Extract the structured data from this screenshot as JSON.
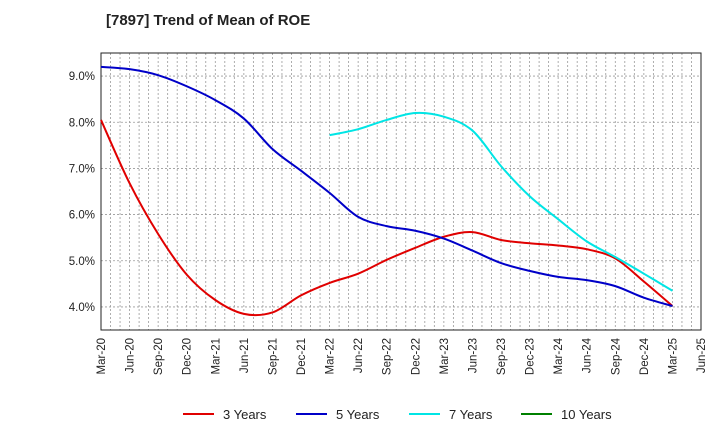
{
  "chart_data": {
    "type": "line",
    "title": "[7897]  Trend of Mean of ROE",
    "xlabel": "",
    "ylabel": "",
    "x_tick_labels": [
      "Mar-20",
      "Jun-20",
      "Sep-20",
      "Dec-20",
      "Mar-21",
      "Jun-21",
      "Sep-21",
      "Dec-21",
      "Mar-22",
      "Jun-22",
      "Sep-22",
      "Dec-22",
      "Mar-23",
      "Jun-23",
      "Sep-23",
      "Dec-23",
      "Mar-24",
      "Jun-24",
      "Sep-24",
      "Dec-24",
      "Mar-25",
      "Jun-25"
    ],
    "y_tick_labels": [
      "4.0%",
      "5.0%",
      "6.0%",
      "7.0%",
      "8.0%",
      "9.0%"
    ],
    "y_ticks": [
      4,
      5,
      6,
      7,
      8,
      9
    ],
    "ylim": [
      3.5,
      9.5
    ],
    "grid": true,
    "legend_position": "bottom",
    "series": [
      {
        "name": "3 Years",
        "color": "#e00000",
        "start_index": 0,
        "values": [
          8.05,
          6.68,
          5.58,
          4.7,
          4.15,
          3.85,
          3.88,
          4.25,
          4.52,
          4.72,
          5.02,
          5.28,
          5.52,
          5.62,
          5.45,
          5.38,
          5.33,
          5.25,
          5.05,
          4.55,
          4.02
        ]
      },
      {
        "name": "5 Years",
        "color": "#0000c8",
        "start_index": 0,
        "values": [
          9.2,
          9.15,
          9.02,
          8.78,
          8.48,
          8.08,
          7.42,
          6.95,
          6.47,
          5.95,
          5.75,
          5.65,
          5.48,
          5.22,
          4.95,
          4.78,
          4.65,
          4.58,
          4.45,
          4.2,
          4.02
        ]
      },
      {
        "name": "7 Years",
        "color": "#00e5e5",
        "start_index": 8,
        "values": [
          7.72,
          7.85,
          8.05,
          8.2,
          8.12,
          7.82,
          7.05,
          6.4,
          5.9,
          5.42,
          5.08,
          4.72,
          4.35
        ]
      },
      {
        "name": "10 Years",
        "color": "#008000",
        "start_index": 0,
        "values": []
      }
    ]
  }
}
